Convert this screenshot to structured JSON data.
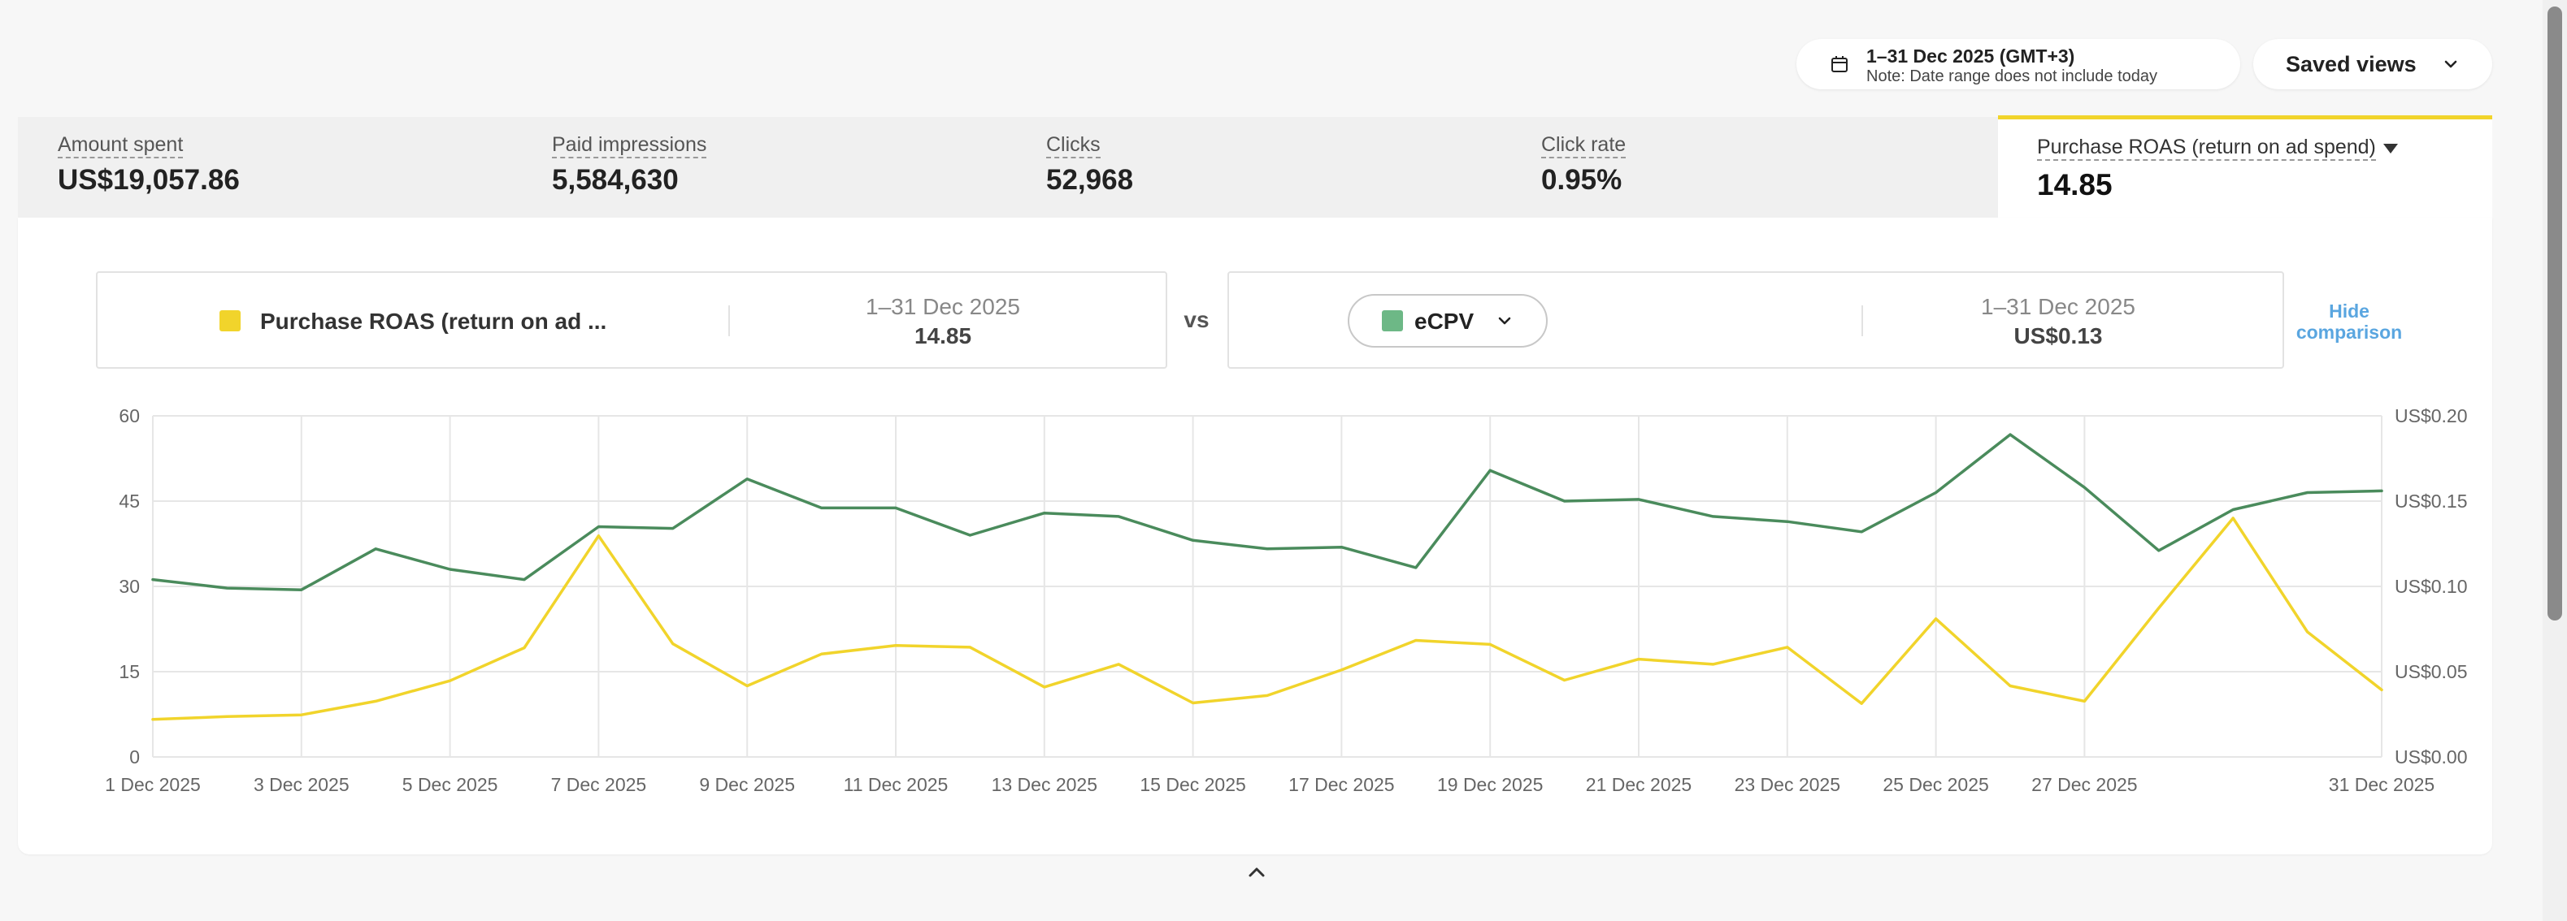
{
  "header": {
    "date_range": "1–31 Dec 2025 (GMT+3)",
    "date_note": "Note: Date range does not include today",
    "saved_views_label": "Saved views",
    "calendar_icon": "calendar-icon",
    "chevron_icon": "chevron-down-icon"
  },
  "kpis": [
    {
      "label": "Amount spent",
      "value": "US$19,057.86"
    },
    {
      "label": "Paid impressions",
      "value": "5,584,630"
    },
    {
      "label": "Clicks",
      "value": "52,968"
    },
    {
      "label": "Click rate",
      "value": "0.95%"
    }
  ],
  "active_kpi": {
    "label": "Purchase ROAS (return on ad spend)",
    "value": "14.85",
    "accent": "#f1d42b"
  },
  "comparison": {
    "left_metric": "Purchase ROAS (return on ad ...",
    "left_date": "1–31 Dec 2025",
    "left_value": "14.85",
    "vs_label": "vs",
    "right_metric": "eCPV",
    "right_date": "1–31 Dec 2025",
    "right_value": "US$0.13",
    "hide_line1": "Hide",
    "hide_line2": "comparison",
    "left_color": "#f1d42b",
    "right_color": "#6db886"
  },
  "chart_data": {
    "type": "line",
    "x": [
      "1 Dec 2025",
      "2 Dec 2025",
      "3 Dec 2025",
      "4 Dec 2025",
      "5 Dec 2025",
      "6 Dec 2025",
      "7 Dec 2025",
      "8 Dec 2025",
      "9 Dec 2025",
      "10 Dec 2025",
      "11 Dec 2025",
      "12 Dec 2025",
      "13 Dec 2025",
      "14 Dec 2025",
      "15 Dec 2025",
      "16 Dec 2025",
      "17 Dec 2025",
      "18 Dec 2025",
      "19 Dec 2025",
      "20 Dec 2025",
      "21 Dec 2025",
      "22 Dec 2025",
      "23 Dec 2025",
      "24 Dec 2025",
      "25 Dec 2025",
      "26 Dec 2025",
      "27 Dec 2025",
      "28 Dec 2025",
      "29 Dec 2025",
      "30 Dec 2025",
      "31 Dec 2025"
    ],
    "x_tick_labels": [
      "1 Dec 2025",
      "3 Dec 2025",
      "5 Dec 2025",
      "7 Dec 2025",
      "9 Dec 2025",
      "11 Dec 2025",
      "13 Dec 2025",
      "15 Dec 2025",
      "17 Dec 2025",
      "19 Dec 2025",
      "21 Dec 2025",
      "23 Dec 2025",
      "25 Dec 2025",
      "27 Dec 2025",
      "31 Dec 2025"
    ],
    "series": [
      {
        "name": "Purchase ROAS (return on ad spend)",
        "axis": "left",
        "color": "#f1d42b",
        "values": [
          6.6,
          7.1,
          7.4,
          9.8,
          13.4,
          19.2,
          38.9,
          19.9,
          12.5,
          18.1,
          19.6,
          19.3,
          12.3,
          16.3,
          9.5,
          10.8,
          15.3,
          20.5,
          19.8,
          13.5,
          17.2,
          16.3,
          19.3,
          9.4,
          24.3,
          12.5,
          9.8,
          26.2,
          42.0,
          22.0,
          11.8
        ]
      },
      {
        "name": "eCPV",
        "axis": "right",
        "color": "#4a8b5c",
        "values": [
          0.104,
          0.099,
          0.098,
          0.122,
          0.11,
          0.104,
          0.135,
          0.134,
          0.163,
          0.146,
          0.146,
          0.13,
          0.143,
          0.141,
          0.127,
          0.122,
          0.123,
          0.111,
          0.168,
          0.15,
          0.151,
          0.141,
          0.138,
          0.132,
          0.155,
          0.189,
          0.158,
          0.121,
          0.145,
          0.155,
          0.156
        ]
      }
    ],
    "y_left": {
      "range": [
        0,
        60
      ],
      "ticks": [
        "0",
        "15",
        "30",
        "45",
        "60"
      ]
    },
    "y_right": {
      "range": [
        0,
        0.2
      ],
      "ticks": [
        "US$0.00",
        "US$0.05",
        "US$0.10",
        "US$0.15",
        "US$0.20"
      ]
    },
    "grid": true
  }
}
